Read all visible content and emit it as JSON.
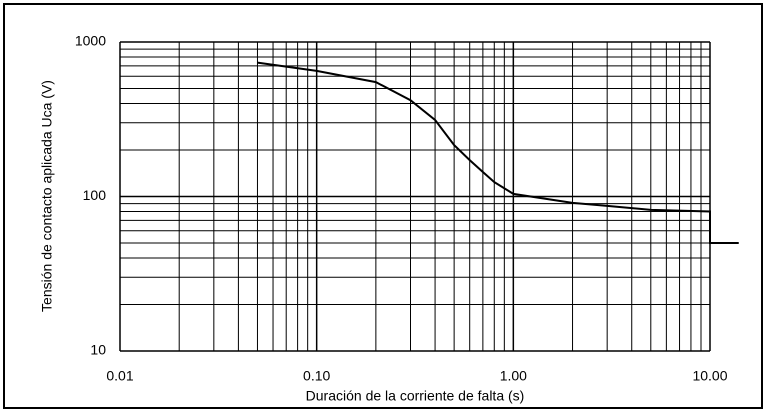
{
  "chart_data": {
    "type": "line",
    "xlabel": "Duración de la corriente de falta (s)",
    "ylabel": "Tensión de contacto aplicada Uca (V)",
    "xscale": "log",
    "yscale": "log",
    "grid": true,
    "xlim": [
      0.01,
      10
    ],
    "ylim": [
      10,
      1000
    ],
    "xticks": [
      {
        "value": 0.01,
        "label": "0.01"
      },
      {
        "value": 0.1,
        "label": "0.10"
      },
      {
        "value": 1,
        "label": "1.00"
      },
      {
        "value": 10,
        "label": "10.00"
      }
    ],
    "yticks": [
      10,
      100,
      1000
    ],
    "xminor": [
      0.02,
      0.03,
      0.04,
      0.05,
      0.06,
      0.07,
      0.08,
      0.09,
      0.2,
      0.3,
      0.4,
      0.5,
      0.6,
      0.7,
      0.8,
      0.9,
      2,
      3,
      4,
      5,
      6,
      7,
      8,
      9
    ],
    "yminor": [
      20,
      30,
      40,
      50,
      60,
      70,
      80,
      90,
      200,
      300,
      400,
      500,
      600,
      700,
      800,
      900
    ],
    "series": [
      {
        "color": "#000000",
        "x": [
          0.05,
          0.1,
          0.2,
          0.3,
          0.4,
          0.5,
          0.6,
          0.7,
          0.8,
          1,
          2,
          3,
          5,
          10,
          10,
          14
        ],
        "values": [
          735,
          650,
          550,
          420,
          313,
          215,
          172,
          144,
          124,
          104,
          91,
          87,
          82,
          80,
          50,
          50
        ]
      }
    ]
  }
}
